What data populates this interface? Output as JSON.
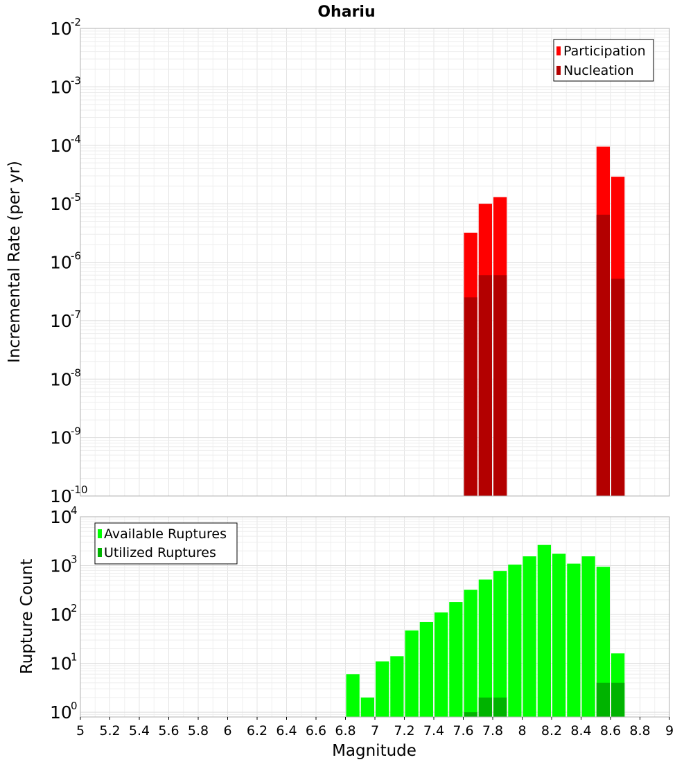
{
  "chart_data": [
    {
      "type": "bar",
      "title": "Ohariu",
      "xlabel": "",
      "ylabel": "Incremental Rate (per yr)",
      "yscale": "log",
      "ylim": [
        1e-10,
        0.01
      ],
      "xlim": [
        5,
        9
      ],
      "bar_width": 0.1,
      "grid": true,
      "legend_position": "top-right",
      "y_ticks": [
        {
          "base": "10",
          "exp": "-2",
          "value": 0.01
        },
        {
          "base": "10",
          "exp": "-3",
          "value": 0.001
        },
        {
          "base": "10",
          "exp": "-4",
          "value": 0.0001
        },
        {
          "base": "10",
          "exp": "-5",
          "value": 1e-05
        },
        {
          "base": "10",
          "exp": "-6",
          "value": 1e-06
        },
        {
          "base": "10",
          "exp": "-7",
          "value": 1e-07
        },
        {
          "base": "10",
          "exp": "-8",
          "value": 1e-08
        },
        {
          "base": "10",
          "exp": "-9",
          "value": 1e-09
        },
        {
          "base": "10",
          "exp": "-10",
          "value": 1e-10
        }
      ],
      "series": [
        {
          "name": "Participation",
          "color": "#ff0000",
          "points": [
            {
              "x": 7.65,
              "y": 3.2e-06
            },
            {
              "x": 7.75,
              "y": 1e-05
            },
            {
              "x": 7.85,
              "y": 1.3e-05
            },
            {
              "x": 8.55,
              "y": 9.5e-05
            },
            {
              "x": 8.65,
              "y": 2.9e-05
            }
          ]
        },
        {
          "name": "Nucleation",
          "color": "#b30000",
          "points": [
            {
              "x": 7.65,
              "y": 2.5e-07
            },
            {
              "x": 7.75,
              "y": 6e-07
            },
            {
              "x": 7.85,
              "y": 6e-07
            },
            {
              "x": 8.55,
              "y": 6.5e-06
            },
            {
              "x": 8.65,
              "y": 5.2e-07
            }
          ]
        }
      ]
    },
    {
      "type": "bar",
      "title": "",
      "xlabel": "Magnitude",
      "ylabel": "Rupture Count",
      "yscale": "log",
      "ylim": [
        0.8,
        10000
      ],
      "xlim": [
        5,
        9
      ],
      "bar_width": 0.1,
      "grid": true,
      "legend_position": "top-left",
      "y_ticks": [
        {
          "base": "10",
          "exp": "4",
          "value": 10000
        },
        {
          "base": "10",
          "exp": "3",
          "value": 1000
        },
        {
          "base": "10",
          "exp": "2",
          "value": 100
        },
        {
          "base": "10",
          "exp": "1",
          "value": 10
        },
        {
          "base": "10",
          "exp": "0",
          "value": 1
        }
      ],
      "x_ticks": [
        "5",
        "5.2",
        "5.4",
        "5.6",
        "5.8",
        "6",
        "6.2",
        "6.4",
        "6.6",
        "6.8",
        "7",
        "7.2",
        "7.4",
        "7.6",
        "7.8",
        "8",
        "8.2",
        "8.4",
        "8.6",
        "8.8",
        "9"
      ],
      "series": [
        {
          "name": "Available Ruptures",
          "color": "#00ff00",
          "points": [
            {
              "x": 6.85,
              "y": 6
            },
            {
              "x": 6.95,
              "y": 2
            },
            {
              "x": 7.05,
              "y": 11
            },
            {
              "x": 7.15,
              "y": 14
            },
            {
              "x": 7.25,
              "y": 47
            },
            {
              "x": 7.35,
              "y": 70
            },
            {
              "x": 7.45,
              "y": 110
            },
            {
              "x": 7.55,
              "y": 180
            },
            {
              "x": 7.65,
              "y": 320
            },
            {
              "x": 7.75,
              "y": 520
            },
            {
              "x": 7.85,
              "y": 780
            },
            {
              "x": 7.95,
              "y": 1050
            },
            {
              "x": 8.05,
              "y": 1550
            },
            {
              "x": 8.15,
              "y": 2650
            },
            {
              "x": 8.25,
              "y": 1750
            },
            {
              "x": 8.35,
              "y": 1100
            },
            {
              "x": 8.45,
              "y": 1550
            },
            {
              "x": 8.55,
              "y": 950
            },
            {
              "x": 8.65,
              "y": 16
            }
          ]
        },
        {
          "name": "Utilized Ruptures",
          "color": "#00b300",
          "points": [
            {
              "x": 7.65,
              "y": 1
            },
            {
              "x": 7.75,
              "y": 2
            },
            {
              "x": 7.85,
              "y": 2
            },
            {
              "x": 8.55,
              "y": 4
            },
            {
              "x": 8.65,
              "y": 4
            }
          ]
        }
      ]
    }
  ]
}
